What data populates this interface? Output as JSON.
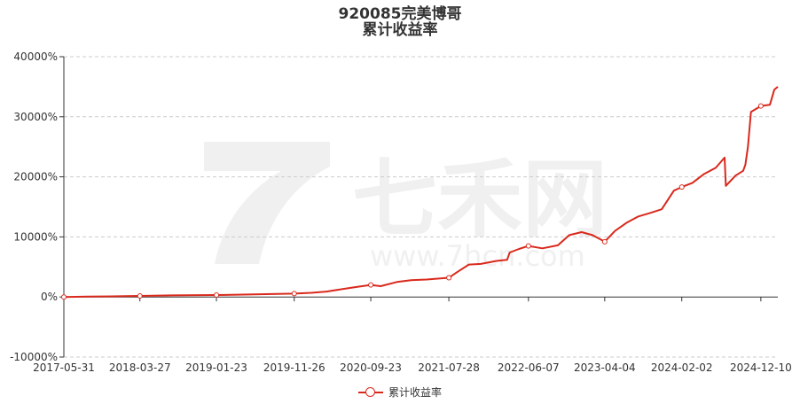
{
  "chart_data": {
    "type": "line",
    "title": "920085完美博哥",
    "subtitle": "累计收益率",
    "xlabel": "",
    "ylabel": "",
    "ylim": [
      -10000,
      40000
    ],
    "yticks": [
      "-10000%",
      "0%",
      "10000%",
      "20000%",
      "30000%",
      "40000%"
    ],
    "ytick_values": [
      -10000,
      0,
      10000,
      20000,
      30000,
      40000
    ],
    "xticks": [
      "2017-05-31",
      "2018-03-27",
      "2019-01-23",
      "2019-11-26",
      "2020-09-23",
      "2021-07-28",
      "2022-06-07",
      "2023-04-04",
      "2024-02-02",
      "2024-12-10"
    ],
    "legend_position": "bottom",
    "grid": true,
    "series": [
      {
        "name": "累计收益率",
        "color": "#d9291c",
        "x": [
          "2017-05-31",
          "2017-09-01",
          "2018-01-02",
          "2018-03-27",
          "2018-08-01",
          "2019-01-23",
          "2019-06-01",
          "2019-11-26",
          "2020-02-01",
          "2020-04-01",
          "2020-06-01",
          "2020-08-01",
          "2020-09-23",
          "2020-11-01",
          "2021-01-04",
          "2021-03-01",
          "2021-05-01",
          "2021-07-28",
          "2021-09-01",
          "2021-10-15",
          "2021-12-01",
          "2022-02-01",
          "2022-03-15",
          "2022-03-25",
          "2022-05-01",
          "2022-06-07",
          "2022-08-01",
          "2022-10-01",
          "2022-11-15",
          "2023-01-03",
          "2023-02-15",
          "2023-04-04",
          "2023-05-15",
          "2023-07-01",
          "2023-08-15",
          "2023-10-01",
          "2023-11-15",
          "2024-01-02",
          "2024-02-02",
          "2024-03-15",
          "2024-05-01",
          "2024-06-15",
          "2024-07-20",
          "2024-07-25",
          "2024-09-01",
          "2024-10-01",
          "2024-10-10",
          "2024-10-20",
          "2024-11-01",
          "2024-12-10",
          "2025-01-15",
          "2025-02-01",
          "2025-02-15"
        ],
        "values": [
          0,
          60,
          120,
          180,
          260,
          320,
          420,
          560,
          700,
          900,
          1300,
          1700,
          2000,
          1800,
          2500,
          2800,
          2900,
          3200,
          4200,
          5400,
          5500,
          6000,
          6200,
          7400,
          8000,
          8500,
          8100,
          8600,
          10300,
          10800,
          10300,
          9200,
          11000,
          12400,
          13400,
          14000,
          14600,
          17700,
          18300,
          19000,
          20500,
          21500,
          23200,
          18500,
          20200,
          21000,
          22000,
          25000,
          30800,
          31800,
          32000,
          34500,
          35000
        ]
      }
    ],
    "watermark": {
      "text": "七禾网",
      "url_text": "www.7hcn.com"
    }
  }
}
